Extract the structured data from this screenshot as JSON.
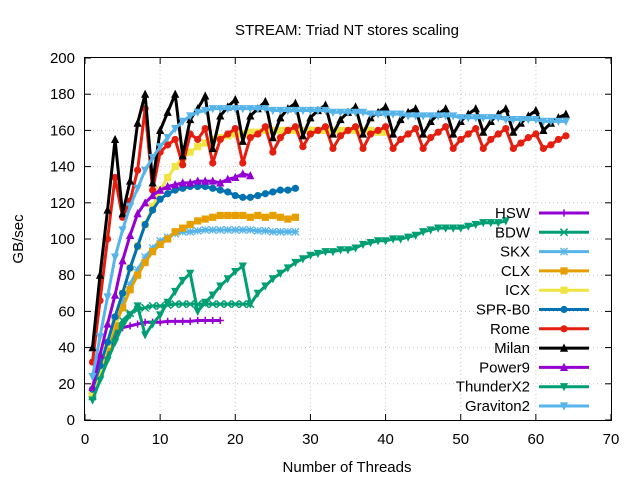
{
  "chart_data": {
    "type": "line",
    "title": "STREAM: Triad NT stores scaling",
    "xlabel": "Number of Threads",
    "ylabel": "GB/sec",
    "xlim": [
      0,
      70
    ],
    "ylim": [
      0,
      200
    ],
    "xticks": [
      0,
      10,
      20,
      30,
      40,
      50,
      60,
      70
    ],
    "yticks": [
      0,
      20,
      40,
      60,
      80,
      100,
      120,
      140,
      160,
      180,
      200
    ],
    "grid": true,
    "legend_position": "bottom-right",
    "series": [
      {
        "name": "HSW",
        "color": "#9400d3",
        "marker": "plus",
        "x": [
          1,
          2,
          3,
          4,
          5,
          6,
          7,
          8,
          9,
          10,
          11,
          12,
          13,
          14,
          15,
          16,
          17,
          18
        ],
        "y": [
          12,
          25,
          37,
          47,
          51,
          52,
          53,
          54,
          54,
          54,
          54.5,
          54.5,
          54.5,
          54.5,
          55,
          55,
          55,
          55
        ]
      },
      {
        "name": "BDW",
        "color": "#009e73",
        "marker": "cross",
        "x": [
          1,
          2,
          3,
          4,
          5,
          6,
          7,
          8,
          9,
          10,
          11,
          12,
          13,
          14,
          15,
          16,
          17,
          18,
          19,
          20,
          21,
          22
        ],
        "y": [
          13,
          26,
          38,
          48,
          55,
          59,
          61,
          62,
          63,
          63,
          63.5,
          64,
          64,
          64,
          64,
          64,
          64,
          64,
          64,
          64,
          64,
          64
        ]
      },
      {
        "name": "SKX",
        "color": "#56b4e9",
        "marker": "star",
        "x": [
          1,
          2,
          3,
          4,
          5,
          6,
          7,
          8,
          9,
          10,
          11,
          12,
          13,
          14,
          15,
          16,
          17,
          18,
          19,
          20,
          21,
          22,
          23,
          24,
          25,
          26,
          27,
          28
        ],
        "y": [
          15,
          28,
          42,
          55,
          65,
          75,
          83,
          90,
          95,
          99,
          101,
          103,
          104,
          104,
          104.5,
          105,
          105,
          105,
          105,
          105,
          105,
          105,
          104.5,
          104.5,
          104,
          104,
          104,
          104
        ]
      },
      {
        "name": "CLX",
        "color": "#e69f00",
        "marker": "square",
        "x": [
          1,
          2,
          3,
          4,
          5,
          6,
          7,
          8,
          9,
          10,
          11,
          12,
          13,
          14,
          15,
          16,
          17,
          18,
          19,
          20,
          21,
          22,
          23,
          24,
          25,
          26,
          27,
          28
        ],
        "y": [
          14,
          27,
          40,
          52,
          62,
          72,
          80,
          87,
          93,
          97,
          100,
          104,
          106,
          108,
          110,
          111,
          112,
          113,
          113,
          113,
          113,
          112,
          113,
          112,
          113,
          112,
          111,
          112
        ]
      },
      {
        "name": "ICX",
        "color": "#f0e442",
        "marker": "square",
        "x": [
          1,
          2,
          3,
          4,
          5,
          6,
          7,
          8,
          9,
          10,
          11,
          12,
          13,
          14,
          15,
          16,
          17,
          18,
          19,
          20,
          21,
          22,
          23,
          24,
          25,
          26,
          27,
          28,
          29,
          30,
          31,
          32,
          33,
          34,
          35,
          36,
          37,
          38,
          39,
          40
        ],
        "y": [
          14,
          28,
          42,
          56,
          70,
          84,
          96,
          108,
          118,
          127,
          134,
          140,
          145,
          148,
          151,
          153,
          155,
          156,
          157,
          158,
          158,
          159,
          159,
          160,
          160,
          160,
          160,
          160,
          160,
          160,
          160,
          160,
          160,
          160,
          160,
          160,
          160,
          160,
          159,
          159
        ]
      },
      {
        "name": "SPR-B0",
        "color": "#0072b2",
        "marker": "circle",
        "x": [
          1,
          2,
          3,
          4,
          5,
          6,
          7,
          8,
          9,
          10,
          11,
          12,
          13,
          14,
          15,
          16,
          17,
          18,
          19,
          20,
          21,
          22,
          23,
          24,
          25,
          26,
          27,
          28
        ],
        "y": [
          17,
          30,
          43,
          57,
          70,
          84,
          96,
          108,
          116,
          122,
          125,
          127,
          128,
          129,
          129,
          129,
          128,
          127,
          126,
          124,
          123,
          123,
          124,
          125,
          126,
          127,
          127,
          128
        ]
      },
      {
        "name": "Rome",
        "color": "#e51e10",
        "marker": "circle",
        "x": [
          1,
          2,
          3,
          4,
          5,
          6,
          7,
          8,
          9,
          10,
          11,
          12,
          13,
          14,
          15,
          16,
          17,
          18,
          19,
          20,
          21,
          22,
          23,
          24,
          25,
          26,
          27,
          28,
          29,
          30,
          31,
          32,
          33,
          34,
          35,
          36,
          37,
          38,
          39,
          40,
          41,
          42,
          43,
          44,
          45,
          46,
          47,
          48,
          49,
          50,
          51,
          52,
          53,
          54,
          55,
          56,
          57,
          58,
          59,
          60,
          61,
          62,
          63,
          64
        ],
        "y": [
          32,
          66,
          100,
          134,
          112,
          121,
          138,
          172,
          127,
          148,
          152,
          155,
          141,
          158,
          155,
          161,
          142,
          155,
          158,
          161,
          142,
          156,
          158,
          162,
          148,
          156,
          160,
          162,
          151,
          158,
          160,
          162,
          150,
          157,
          160,
          162,
          150,
          158,
          160,
          162,
          150,
          155,
          158,
          161,
          150,
          156,
          159,
          162,
          150,
          155,
          158,
          161,
          150,
          155,
          158,
          161,
          150,
          153,
          156,
          158,
          150,
          152,
          155,
          157
        ]
      },
      {
        "name": "Milan",
        "color": "#000000",
        "marker": "triangle",
        "x": [
          1,
          2,
          3,
          4,
          5,
          6,
          7,
          8,
          9,
          10,
          11,
          12,
          13,
          14,
          15,
          16,
          17,
          18,
          19,
          20,
          21,
          22,
          23,
          24,
          25,
          26,
          27,
          28,
          29,
          30,
          31,
          32,
          33,
          34,
          35,
          36,
          37,
          38,
          39,
          40,
          41,
          42,
          43,
          44,
          45,
          46,
          47,
          48,
          49,
          50,
          51,
          52,
          53,
          54,
          55,
          56,
          57,
          58,
          59,
          60,
          61,
          62,
          63,
          64
        ],
        "y": [
          40,
          80,
          116,
          155,
          114,
          132,
          164,
          180,
          131,
          160,
          170,
          180,
          146,
          166,
          172,
          179,
          150,
          168,
          173,
          177,
          154,
          168,
          172,
          176,
          156,
          167,
          172,
          175,
          157,
          167,
          171,
          174,
          158,
          166,
          170,
          173,
          158,
          167,
          170,
          173,
          158,
          166,
          170,
          172,
          158,
          165,
          169,
          172,
          158,
          165,
          169,
          172,
          159,
          165,
          169,
          172,
          159,
          164,
          168,
          171,
          160,
          164,
          167,
          169
        ]
      },
      {
        "name": "Power9",
        "color": "#9400d3",
        "marker": "triangle",
        "x": [
          1,
          2,
          3,
          4,
          5,
          6,
          7,
          8,
          9,
          10,
          11,
          12,
          13,
          14,
          15,
          16,
          17,
          18,
          19,
          20,
          21,
          22
        ],
        "y": [
          18,
          36,
          53,
          69,
          88,
          102,
          114,
          120,
          124,
          127,
          129,
          130,
          131,
          131,
          132,
          132,
          132,
          131,
          133,
          134,
          136,
          135
        ]
      },
      {
        "name": "ThunderX2",
        "color": "#009e73",
        "marker": "triangle-down",
        "x": [
          1,
          2,
          3,
          4,
          5,
          6,
          7,
          8,
          9,
          10,
          11,
          12,
          13,
          14,
          15,
          16,
          17,
          18,
          19,
          20,
          21,
          22,
          23,
          24,
          25,
          26,
          27,
          28,
          29,
          30,
          31,
          32,
          33,
          34,
          35,
          36,
          37,
          38,
          39,
          40,
          41,
          42,
          43,
          44,
          45,
          46,
          47,
          48,
          49,
          50,
          51,
          52,
          53,
          54,
          55,
          56
        ],
        "y": [
          11,
          22,
          33,
          43,
          52,
          58,
          63,
          47,
          53,
          58,
          65,
          71,
          77,
          81,
          60,
          65,
          69,
          74,
          78,
          82,
          85,
          64,
          70,
          74,
          78,
          81,
          84,
          87,
          89,
          91,
          92,
          93,
          93,
          94,
          94,
          95,
          97,
          98,
          99,
          99,
          100,
          100,
          101,
          102,
          104,
          105,
          106,
          106,
          106,
          106,
          107,
          108,
          109,
          109,
          109,
          110
        ]
      },
      {
        "name": "Graviton2",
        "color": "#56b4e9",
        "marker": "triangle-down",
        "x": [
          1,
          2,
          3,
          4,
          5,
          6,
          7,
          8,
          9,
          10,
          11,
          12,
          13,
          14,
          15,
          16,
          17,
          18,
          19,
          20,
          21,
          22,
          23,
          24,
          25,
          26,
          27,
          28,
          29,
          30,
          31,
          32,
          33,
          34,
          35,
          36,
          37,
          38,
          39,
          40,
          41,
          42,
          43,
          44,
          45,
          46,
          47,
          48,
          49,
          50,
          51,
          52,
          53,
          54,
          55,
          56,
          57,
          58,
          59,
          60,
          61,
          62,
          63,
          64
        ],
        "y": [
          24,
          46,
          68,
          90,
          105,
          118,
          128,
          138,
          145,
          151,
          156,
          161,
          165,
          168,
          170,
          171,
          172,
          172,
          172,
          172,
          172,
          172,
          172,
          172,
          171,
          171,
          171,
          171,
          171,
          171,
          171,
          171,
          170,
          170,
          170,
          170,
          170,
          169,
          169,
          169,
          169,
          169,
          168,
          168,
          168,
          168,
          168,
          168,
          168,
          167,
          167,
          167,
          167,
          167,
          167,
          166,
          166,
          166,
          166,
          166,
          165,
          165,
          165,
          165
        ]
      }
    ]
  }
}
